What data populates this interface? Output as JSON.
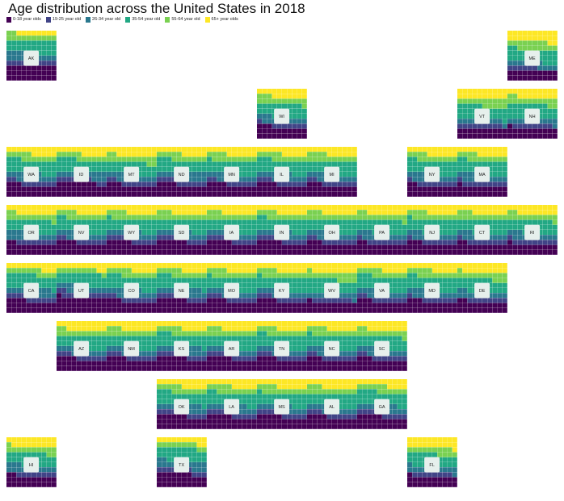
{
  "chart_data": {
    "type": "waffle-tile-grid-map",
    "title": "Age distribution across the United States in 2018",
    "legend": [
      {
        "name": "0-18 year olds",
        "color": "#440154"
      },
      {
        "name": "19-25 year old",
        "color": "#414487"
      },
      {
        "name": "26-34 year old",
        "color": "#2a788e"
      },
      {
        "name": "35-54 year old",
        "color": "#22a884"
      },
      {
        "name": "55-64 year old",
        "color": "#7ad151"
      },
      {
        "name": "65+ year olds",
        "color": "#fde725"
      }
    ],
    "cells_per_tile": 100,
    "states": [
      {
        "abbr": "AK",
        "col": 0,
        "row": 0,
        "values": [
          30,
          10,
          14,
          26,
          12,
          8
        ]
      },
      {
        "abbr": "ME",
        "col": 10,
        "row": 0,
        "values": [
          20,
          6,
          11,
          25,
          16,
          22
        ]
      },
      {
        "abbr": "WI",
        "col": 5,
        "row": 1,
        "values": [
          23,
          8,
          12,
          26,
          14,
          17
        ]
      },
      {
        "abbr": "VT",
        "col": 9,
        "row": 1,
        "values": [
          20,
          9,
          10,
          26,
          15,
          20
        ]
      },
      {
        "abbr": "NH",
        "col": 10,
        "row": 1,
        "values": [
          21,
          8,
          11,
          28,
          14,
          18
        ]
      },
      {
        "abbr": "WA",
        "col": 0,
        "row": 2,
        "values": [
          23,
          9,
          15,
          26,
          12,
          15
        ]
      },
      {
        "abbr": "ID",
        "col": 1,
        "row": 2,
        "values": [
          28,
          9,
          13,
          24,
          11,
          15
        ]
      },
      {
        "abbr": "MT",
        "col": 2,
        "row": 2,
        "values": [
          23,
          9,
          12,
          24,
          14,
          18
        ]
      },
      {
        "abbr": "ND",
        "col": 3,
        "row": 2,
        "values": [
          24,
          12,
          14,
          23,
          12,
          15
        ]
      },
      {
        "abbr": "MN",
        "col": 4,
        "row": 2,
        "values": [
          24,
          8,
          13,
          26,
          13,
          16
        ]
      },
      {
        "abbr": "IL",
        "col": 5,
        "row": 2,
        "values": [
          24,
          9,
          14,
          26,
          12,
          15
        ]
      },
      {
        "abbr": "MI",
        "col": 6,
        "row": 2,
        "values": [
          23,
          9,
          12,
          26,
          14,
          16
        ]
      },
      {
        "abbr": "NY",
        "col": 8,
        "row": 2,
        "values": [
          22,
          9,
          14,
          27,
          12,
          16
        ]
      },
      {
        "abbr": "MA",
        "col": 9,
        "row": 2,
        "values": [
          21,
          10,
          14,
          27,
          12,
          16
        ]
      },
      {
        "abbr": "OR",
        "col": 0,
        "row": 3,
        "values": [
          22,
          8,
          14,
          25,
          13,
          18
        ]
      },
      {
        "abbr": "NV",
        "col": 1,
        "row": 3,
        "values": [
          24,
          8,
          14,
          26,
          12,
          16
        ]
      },
      {
        "abbr": "WY",
        "col": 2,
        "row": 3,
        "values": [
          25,
          9,
          13,
          24,
          13,
          16
        ]
      },
      {
        "abbr": "SD",
        "col": 3,
        "row": 3,
        "values": [
          26,
          9,
          12,
          23,
          13,
          17
        ]
      },
      {
        "abbr": "IA",
        "col": 4,
        "row": 3,
        "values": [
          25,
          9,
          12,
          24,
          13,
          17
        ]
      },
      {
        "abbr": "IN",
        "col": 5,
        "row": 3,
        "values": [
          25,
          9,
          13,
          25,
          12,
          16
        ]
      },
      {
        "abbr": "OH",
        "col": 6,
        "row": 3,
        "values": [
          23,
          9,
          13,
          25,
          13,
          17
        ]
      },
      {
        "abbr": "PA",
        "col": 7,
        "row": 3,
        "values": [
          22,
          9,
          12,
          26,
          13,
          18
        ]
      },
      {
        "abbr": "NJ",
        "col": 8,
        "row": 3,
        "values": [
          23,
          8,
          12,
          28,
          13,
          16
        ]
      },
      {
        "abbr": "CT",
        "col": 9,
        "row": 3,
        "values": [
          22,
          9,
          12,
          27,
          13,
          17
        ]
      },
      {
        "abbr": "RI",
        "col": 10,
        "row": 3,
        "values": [
          21,
          10,
          12,
          26,
          13,
          18
        ]
      },
      {
        "abbr": "CA",
        "col": 0,
        "row": 4,
        "values": [
          24,
          10,
          15,
          27,
          11,
          13
        ]
      },
      {
        "abbr": "UT",
        "col": 1,
        "row": 4,
        "values": [
          31,
          11,
          14,
          23,
          9,
          12
        ]
      },
      {
        "abbr": "CO",
        "col": 2,
        "row": 4,
        "values": [
          23,
          9,
          15,
          26,
          12,
          15
        ]
      },
      {
        "abbr": "NE",
        "col": 3,
        "row": 4,
        "values": [
          26,
          10,
          13,
          24,
          12,
          15
        ]
      },
      {
        "abbr": "MO",
        "col": 4,
        "row": 4,
        "values": [
          24,
          9,
          13,
          25,
          13,
          16
        ]
      },
      {
        "abbr": "KY",
        "col": 5,
        "row": 4,
        "values": [
          24,
          9,
          12,
          26,
          13,
          16
        ]
      },
      {
        "abbr": "WV",
        "col": 6,
        "row": 4,
        "values": [
          21,
          8,
          11,
          26,
          15,
          19
        ]
      },
      {
        "abbr": "VA",
        "col": 7,
        "row": 4,
        "values": [
          23,
          9,
          14,
          27,
          12,
          15
        ]
      },
      {
        "abbr": "MD",
        "col": 8,
        "row": 4,
        "values": [
          23,
          8,
          14,
          27,
          13,
          15
        ]
      },
      {
        "abbr": "DE",
        "col": 9,
        "row": 4,
        "values": [
          22,
          8,
          12,
          25,
          14,
          19
        ]
      },
      {
        "abbr": "AZ",
        "col": 1,
        "row": 5,
        "values": [
          24,
          9,
          13,
          24,
          12,
          18
        ]
      },
      {
        "abbr": "NM",
        "col": 2,
        "row": 5,
        "values": [
          24,
          9,
          13,
          24,
          13,
          17
        ]
      },
      {
        "abbr": "KS",
        "col": 3,
        "row": 5,
        "values": [
          26,
          10,
          13,
          24,
          12,
          15
        ]
      },
      {
        "abbr": "AR",
        "col": 4,
        "row": 5,
        "values": [
          25,
          9,
          12,
          24,
          13,
          17
        ]
      },
      {
        "abbr": "TN",
        "col": 5,
        "row": 5,
        "values": [
          24,
          9,
          13,
          26,
          12,
          16
        ]
      },
      {
        "abbr": "NC",
        "col": 6,
        "row": 5,
        "values": [
          23,
          9,
          13,
          26,
          13,
          16
        ]
      },
      {
        "abbr": "SC",
        "col": 7,
        "row": 5,
        "values": [
          23,
          9,
          12,
          25,
          13,
          18
        ]
      },
      {
        "abbr": "OK",
        "col": 3,
        "row": 6,
        "values": [
          26,
          10,
          13,
          24,
          12,
          15
        ]
      },
      {
        "abbr": "LA",
        "col": 4,
        "row": 6,
        "values": [
          25,
          9,
          14,
          24,
          13,
          15
        ]
      },
      {
        "abbr": "MS",
        "col": 5,
        "row": 6,
        "values": [
          25,
          10,
          12,
          24,
          13,
          16
        ]
      },
      {
        "abbr": "AL",
        "col": 6,
        "row": 6,
        "values": [
          24,
          9,
          12,
          25,
          13,
          17
        ]
      },
      {
        "abbr": "GA",
        "col": 7,
        "row": 6,
        "values": [
          25,
          10,
          13,
          26,
          12,
          14
        ]
      },
      {
        "abbr": "HI",
        "col": 0,
        "row": 7,
        "values": [
          22,
          8,
          13,
          25,
          13,
          19
        ]
      },
      {
        "abbr": "TX",
        "col": 3,
        "row": 7,
        "values": [
          27,
          10,
          15,
          26,
          10,
          12
        ]
      },
      {
        "abbr": "FL",
        "col": 8,
        "row": 7,
        "values": [
          21,
          8,
          12,
          25,
          13,
          21
        ]
      }
    ]
  }
}
